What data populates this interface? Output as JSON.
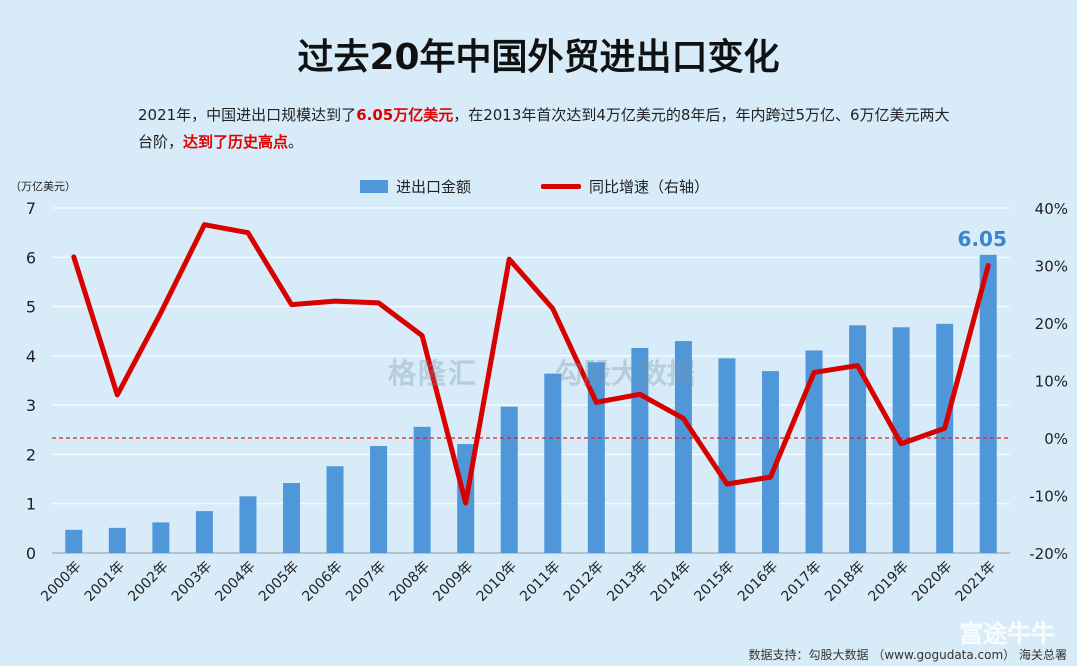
{
  "title": "过去20年中国外贸进出口变化",
  "subtitle": {
    "part1": "2021年，中国进出口规模达到了",
    "highlight1": "6.05万亿美元",
    "part2": "，在2013年首次达到4万亿美元的8年后，年内跨过5万亿、6万亿美元两大台阶，",
    "highlight2": "达到了历史高点",
    "part3": "。"
  },
  "watermark": {
    "logo": "格隆汇",
    "partner": "勾股大数据"
  },
  "brand": "富途牛牛",
  "source": "数据支持：勾股大数据 （www.gogudata.com） 海关总署",
  "colors": {
    "bar": "#4f97d8",
    "line": "#d90000",
    "label": "#3a86cc",
    "zero_line": "#e02020"
  },
  "chart_data": {
    "type": "bar",
    "title": "过去20年中国外贸进出口变化",
    "unit_label": "（万亿美元）",
    "categories": [
      "2000年",
      "2001年",
      "2002年",
      "2003年",
      "2004年",
      "2005年",
      "2006年",
      "2007年",
      "2008年",
      "2009年",
      "2010年",
      "2011年",
      "2012年",
      "2013年",
      "2014年",
      "2015年",
      "2016年",
      "2017年",
      "2018年",
      "2019年",
      "2020年",
      "2021年"
    ],
    "series": [
      {
        "name": "进出口金额",
        "type": "bar",
        "axis": "left",
        "values": [
          0.47,
          0.51,
          0.62,
          0.85,
          1.15,
          1.42,
          1.76,
          2.17,
          2.56,
          2.21,
          2.97,
          3.64,
          3.87,
          4.16,
          4.3,
          3.95,
          3.69,
          4.11,
          4.62,
          4.58,
          4.65,
          6.05
        ]
      },
      {
        "name": "同比增速（右轴）",
        "type": "line",
        "axis": "right",
        "values": [
          31.5,
          7.5,
          21.8,
          37.1,
          35.7,
          23.2,
          23.8,
          23.5,
          17.8,
          -11.3,
          31.1,
          22.5,
          6.2,
          7.6,
          3.4,
          -8.0,
          -6.8,
          11.4,
          12.6,
          -1.0,
          1.7,
          30.0
        ]
      }
    ],
    "data_labels": [
      {
        "category": "2021年",
        "text": "6.05"
      }
    ],
    "y_left": {
      "min": 0,
      "max": 7,
      "ticks": [
        "0",
        "1",
        "2",
        "3",
        "4",
        "5",
        "6",
        "7"
      ]
    },
    "y_right": {
      "min": -20,
      "max": 40,
      "ticks": [
        "-20%",
        "-10%",
        "0%",
        "10%",
        "20%",
        "30%",
        "40%"
      ]
    },
    "legend": "top-center",
    "grid": true,
    "reference_line": {
      "axis": "right",
      "value": 0,
      "style": "dashed"
    }
  }
}
